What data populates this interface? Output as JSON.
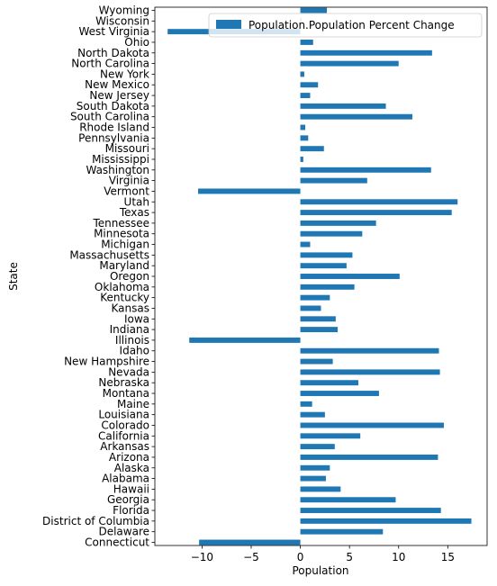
{
  "chart_data": {
    "type": "bar",
    "orientation": "horizontal",
    "xlabel": "Population",
    "ylabel": "State",
    "xlim": [
      -14.8,
      19.0
    ],
    "xticks": [
      -10,
      -5,
      0,
      5,
      10,
      15
    ],
    "grid": false,
    "legend_position": "top-right",
    "bar_color": "#1f77b4",
    "series": [
      {
        "name": "Population.Population Percent Change",
        "categories": [
          "Connecticut",
          "Delaware",
          "District of Columbia",
          "Florida",
          "Georgia",
          "Hawaii",
          "Alabama",
          "Alaska",
          "Arizona",
          "Arkansas",
          "California",
          "Colorado",
          "Louisiana",
          "Maine",
          "Montana",
          "Nebraska",
          "Nevada",
          "New Hampshire",
          "Idaho",
          "Illinois",
          "Indiana",
          "Iowa",
          "Kansas",
          "Kentucky",
          "Oklahoma",
          "Oregon",
          "Maryland",
          "Massachusetts",
          "Michigan",
          "Minnesota",
          "Tennessee",
          "Texas",
          "Utah",
          "Vermont",
          "Virginia",
          "Washington",
          "Mississippi",
          "Missouri",
          "Pennsylvania",
          "Rhode Island",
          "South Carolina",
          "South Dakota",
          "New Jersey",
          "New Mexico",
          "New York",
          "North Carolina",
          "North Dakota",
          "Ohio",
          "West Virginia",
          "Wisconsin",
          "Wyoming"
        ],
        "values": [
          -10.3,
          8.4,
          17.4,
          14.3,
          9.7,
          4.1,
          2.6,
          3.0,
          14.0,
          3.5,
          6.1,
          14.6,
          2.5,
          1.2,
          8.0,
          5.9,
          14.2,
          3.3,
          14.1,
          -11.3,
          3.8,
          3.6,
          2.1,
          3.0,
          5.5,
          10.1,
          4.7,
          5.3,
          1.0,
          6.3,
          7.7,
          15.4,
          16.0,
          -10.4,
          6.8,
          13.3,
          0.3,
          2.4,
          0.8,
          0.5,
          11.4,
          8.7,
          1.0,
          1.8,
          0.4,
          10.0,
          13.4,
          1.3,
          -13.5,
          0.1,
          2.7
        ]
      }
    ]
  }
}
